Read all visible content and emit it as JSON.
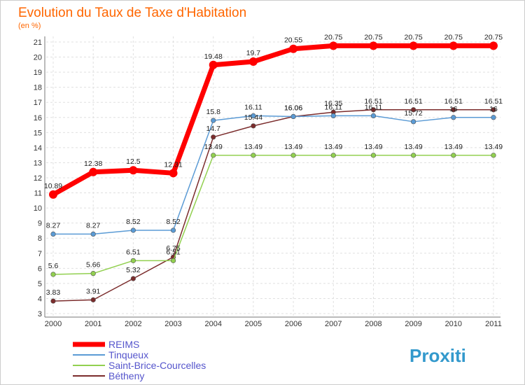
{
  "title": "Evolution du Taux de Taxe d'Habitation",
  "subtitle": "(en %)",
  "brand": "Proxiti",
  "chart_data": {
    "type": "line",
    "title": "Evolution du Taux de Taxe d'Habitation",
    "ylabel": "(en %)",
    "ylim": [
      3,
      21
    ],
    "yticks": [
      3,
      4,
      5,
      6,
      7,
      8,
      9,
      10,
      11,
      12,
      13,
      14,
      15,
      16,
      17,
      18,
      19,
      20,
      21
    ],
    "x": [
      "2000",
      "2001",
      "2002",
      "2003",
      "2004",
      "2005",
      "2006",
      "2007",
      "2008",
      "2009",
      "2010",
      "2011"
    ],
    "grid": true,
    "legend_position": "bottom-left",
    "series": [
      {
        "name": "REIMS",
        "color": "#ff0000",
        "values": [
          10.89,
          12.38,
          12.5,
          12.31,
          19.48,
          19.7,
          20.55,
          20.75,
          20.75,
          20.75,
          20.75,
          20.75
        ],
        "labels": [
          "10.89",
          "12.38",
          "12.5",
          "12.31",
          "19.48",
          "19.7",
          "20.55",
          "20.75",
          "20.75",
          "20.75",
          "20.75",
          "20.75"
        ]
      },
      {
        "name": "Tinqueux",
        "color": "#5b9bd5",
        "values": [
          8.27,
          8.27,
          8.52,
          8.52,
          15.8,
          16.11,
          16.06,
          16.11,
          16.11,
          15.72,
          16,
          16
        ],
        "labels": [
          "8.27",
          "8.27",
          "8.52",
          "8.52",
          "15.8",
          "16.11",
          "16.06",
          "16.11",
          "16.11",
          "15.72",
          "16",
          "16"
        ]
      },
      {
        "name": "Saint-Brice-Courcelles",
        "color": "#92d050",
        "values": [
          5.6,
          5.66,
          6.51,
          6.51,
          13.49,
          13.49,
          13.49,
          13.49,
          13.49,
          13.49,
          13.49,
          13.49
        ],
        "labels": [
          "5.6",
          "5.66",
          "6.51",
          "6.51",
          "13.49",
          "13.49",
          "13.49",
          "13.49",
          "13.49",
          "13.49",
          "13.49",
          "13.49"
        ]
      },
      {
        "name": "Bétheny",
        "color": "#7b2c2c",
        "values": [
          3.83,
          3.91,
          5.32,
          6.75,
          14.7,
          15.44,
          16.06,
          16.35,
          16.51,
          16.51,
          16.51,
          16.51
        ],
        "labels": [
          "3.83",
          "3.91",
          "5.32",
          "6.75",
          "14.7",
          "15.44",
          "16.06",
          "16.35",
          "16.51",
          "16.51",
          "16.51",
          "16.51"
        ]
      }
    ]
  }
}
